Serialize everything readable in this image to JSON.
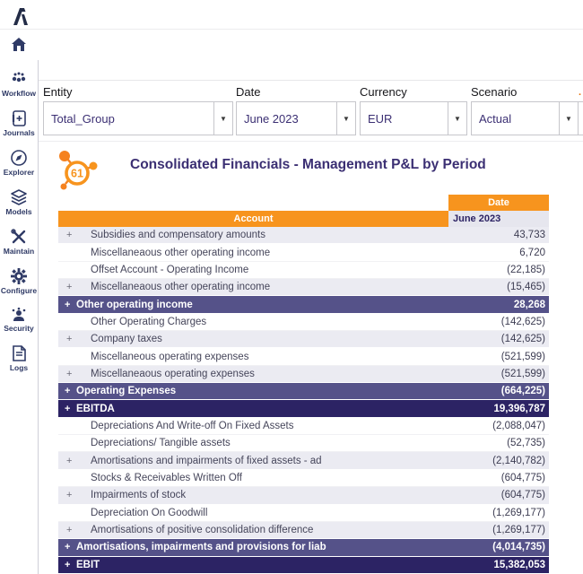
{
  "app": {
    "logo_name": "amelkis-logo"
  },
  "sidebar": {
    "items": [
      {
        "label": "Workflow"
      },
      {
        "label": "Journals"
      },
      {
        "label": "Explorer"
      },
      {
        "label": "Models"
      },
      {
        "label": "Maintain"
      },
      {
        "label": "Configure"
      },
      {
        "label": "Security"
      },
      {
        "label": "Logs"
      }
    ]
  },
  "filters": [
    {
      "label": "Entity",
      "value": "Total_Group"
    },
    {
      "label": "Date",
      "value": "June 2023"
    },
    {
      "label": "Currency",
      "value": "EUR"
    },
    {
      "label": "Scenario",
      "value": "Actual"
    }
  ],
  "report": {
    "badge": "61",
    "title": "Consolidated Financials - Management P&L by Period"
  },
  "table": {
    "date_header": "Date",
    "account_header": "Account",
    "period": "June 2023",
    "rows": [
      {
        "plus": "+",
        "label": "Subsidies and compensatory amounts",
        "value": "43,733",
        "style": "alt"
      },
      {
        "plus": "",
        "label": "Miscellaneaous other operating income",
        "value": "6,720",
        "style": "plain"
      },
      {
        "plus": "",
        "label": "Offset Account - Operating Income",
        "value": "(22,185)",
        "style": "plain"
      },
      {
        "plus": "+",
        "label": "Miscellaneaous other operating income",
        "value": "(15,465)",
        "style": "alt"
      },
      {
        "plus": "+",
        "label": "Other operating income",
        "value": "28,268",
        "style": "subtotal"
      },
      {
        "plus": "",
        "label": "Other Operating Charges",
        "value": "(142,625)",
        "style": "plain"
      },
      {
        "plus": "+",
        "label": "Company taxes",
        "value": "(142,625)",
        "style": "alt"
      },
      {
        "plus": "",
        "label": "Miscellaneous operating expenses",
        "value": "(521,599)",
        "style": "plain"
      },
      {
        "plus": "+",
        "label": "Miscellaneaous operating expenses",
        "value": "(521,599)",
        "style": "alt"
      },
      {
        "plus": "+",
        "label": "Operating Expenses",
        "value": "(664,225)",
        "style": "subtotal"
      },
      {
        "plus": "+",
        "label": "EBITDA",
        "value": "19,396,787",
        "style": "total"
      },
      {
        "plus": "",
        "label": "Depreciations And Write-off On Fixed Assets",
        "value": "(2,088,047)",
        "style": "plain"
      },
      {
        "plus": "",
        "label": "Depreciations/ Tangible assets",
        "value": "(52,735)",
        "style": "plain"
      },
      {
        "plus": "+",
        "label": "Amortisations and impairments of fixed assets - ad",
        "value": "(2,140,782)",
        "style": "alt"
      },
      {
        "plus": "",
        "label": "Stocks & Receivables Written Off",
        "value": "(604,775)",
        "style": "plain"
      },
      {
        "plus": "+",
        "label": "Impairments of stock",
        "value": "(604,775)",
        "style": "alt"
      },
      {
        "plus": "",
        "label": "Depreciation On Goodwill",
        "value": "(1,269,177)",
        "style": "plain"
      },
      {
        "plus": "+",
        "label": "Amortisations of positive consolidation difference",
        "value": "(1,269,177)",
        "style": "alt"
      },
      {
        "plus": "+",
        "label": "Amortisations, impairments and provisions for liab",
        "value": "(4,014,735)",
        "style": "subtotal"
      },
      {
        "plus": "+",
        "label": "EBIT",
        "value": "15,382,053",
        "style": "total"
      }
    ]
  },
  "colors": {
    "accent_orange": "#f7941e",
    "subtotal_purple": "#555289",
    "total_indigo": "#2c2364",
    "title_purple": "#3b2f73",
    "sidebar_navy": "#2f3a66",
    "alt_row": "#ebebf2"
  }
}
